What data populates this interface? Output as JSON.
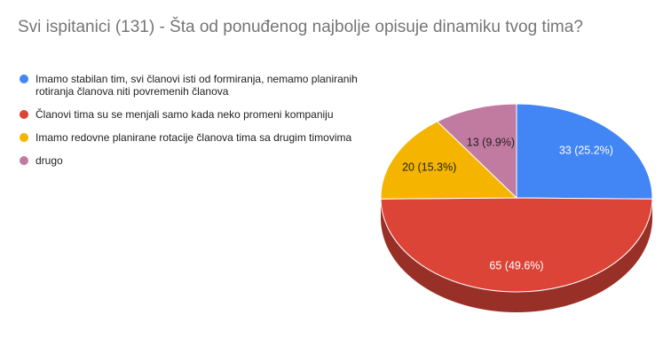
{
  "chart_data": {
    "type": "pie",
    "title": "Svi ispitanici (131) - Šta od ponuđenog najbolje opisuje dinamiku tvog tima?",
    "legend_position": "left",
    "slices": [
      {
        "name": "Imamo stabilan tim, svi članovi isti od formiranja, nemamo planiranih rotiranja članova niti povremenih članova",
        "value": 33,
        "label": "33 (25.2%)",
        "color": "#4285f4",
        "label_color": "#ffffff"
      },
      {
        "name": "Članovi tima su se menjali samo kada neko promeni kompaniju",
        "value": 65,
        "label": "65 (49.6%)",
        "color": "#db4437",
        "label_color": "#ffffff"
      },
      {
        "name": "Imamo redovne planirane rotacije članova tima sa drugim timovima",
        "value": 20,
        "label": "20 (15.3%)",
        "color": "#f4b400",
        "label_color": "#222222"
      },
      {
        "name": "drugo",
        "value": 13,
        "label": "13 (9.9%)",
        "color": "#c27ba0",
        "label_color": "#222222"
      }
    ]
  }
}
